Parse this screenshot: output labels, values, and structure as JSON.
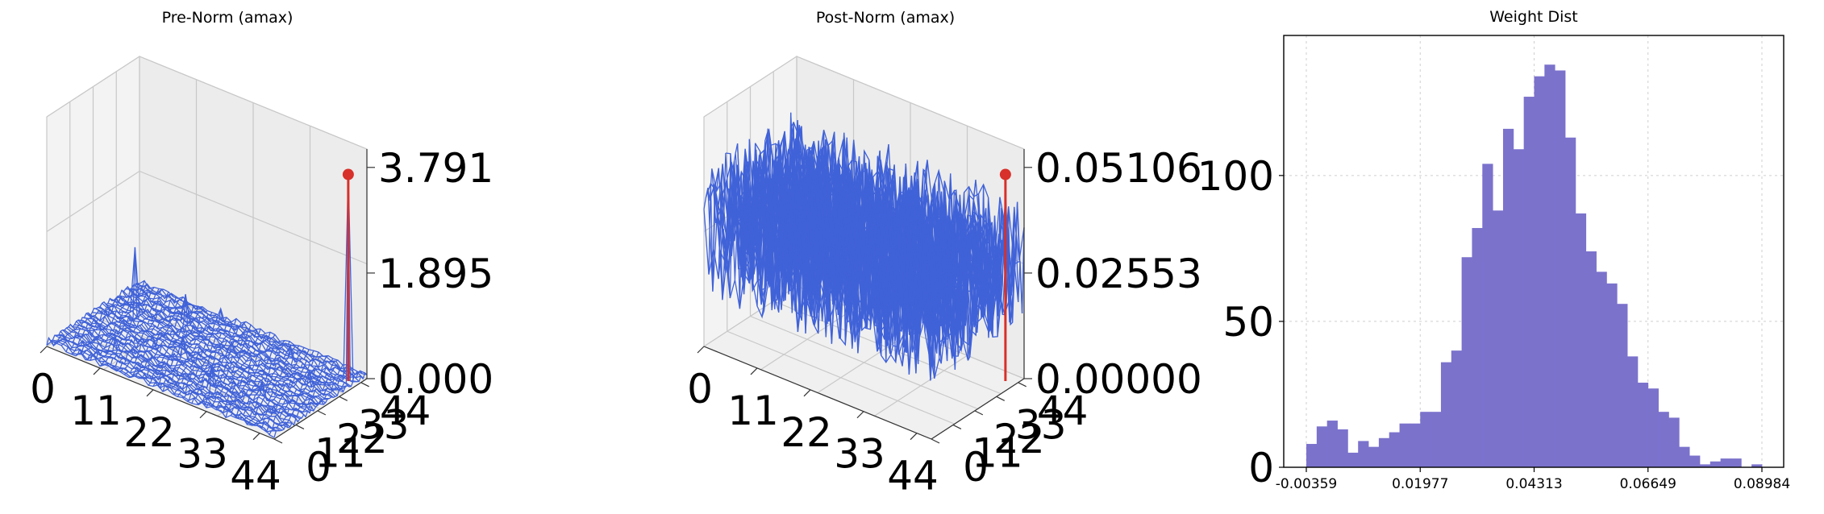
{
  "colors": {
    "wire": "#4062d8",
    "peak": "#d8302a",
    "bar": "#7b72cc",
    "pane": "#f0f0f0",
    "grid": "#c8c8c8"
  },
  "chart_data": [
    {
      "type": "surface3d",
      "title": "Pre-Norm (amax)",
      "x_ticks": [
        "0",
        "11",
        "22",
        "33",
        "44"
      ],
      "y_ticks": [
        "0",
        "11",
        "22",
        "33",
        "44"
      ],
      "z_ticks": [
        "0.000",
        "1.895",
        "3.791"
      ],
      "grid_size": 48,
      "z_range": [
        0,
        3.791
      ],
      "baseline": 0.08,
      "noise": 0.06,
      "spikes": [
        {
          "x": 46,
          "y": 40,
          "z": 3.791
        },
        {
          "x": 6,
          "y": 30,
          "z": 1.3
        },
        {
          "x": 14,
          "y": 36,
          "z": 0.6
        },
        {
          "x": 20,
          "y": 20,
          "z": 0.45
        },
        {
          "x": 30,
          "y": 10,
          "z": 0.5
        },
        {
          "x": 38,
          "y": 16,
          "z": 0.35
        },
        {
          "x": 10,
          "y": 10,
          "z": 0.3
        },
        {
          "x": 26,
          "y": 30,
          "z": 0.3
        },
        {
          "x": 42,
          "y": 30,
          "z": 0.35
        },
        {
          "x": 18,
          "y": 44,
          "z": 0.3
        },
        {
          "x": 34,
          "y": 40,
          "z": 0.3
        }
      ],
      "peak": {
        "x": 46,
        "y": 40,
        "z": 3.791
      }
    },
    {
      "type": "surface3d",
      "title": "Post-Norm (amax)",
      "x_ticks": [
        "0",
        "11",
        "22",
        "33",
        "44"
      ],
      "y_ticks": [
        "0",
        "11",
        "22",
        "33",
        "44"
      ],
      "z_ticks": [
        "0.00000",
        "0.02553",
        "0.05106"
      ],
      "grid_size": 48,
      "z_range": [
        0,
        0.05106
      ],
      "baseline": 0.028,
      "noise": 0.016,
      "spikes": [],
      "peak": {
        "x": 46,
        "y": 40,
        "z": 0.05106
      }
    },
    {
      "type": "histogram",
      "title": "Weight Dist",
      "x_range": [
        -0.00359,
        0.08984
      ],
      "x_ticks": [
        "-0.00359",
        "0.01977",
        "0.04313",
        "0.06649",
        "0.08984"
      ],
      "y_ticks": [
        "0",
        "50",
        "100"
      ],
      "ylim": [
        0,
        148
      ],
      "grid": true,
      "counts": [
        8,
        14,
        16,
        13,
        5,
        9,
        7,
        10,
        12,
        15,
        15,
        19,
        19,
        36,
        40,
        72,
        82,
        104,
        88,
        116,
        109,
        127,
        134,
        138,
        136,
        113,
        87,
        74,
        67,
        63,
        56,
        38,
        29,
        27,
        19,
        17,
        7,
        4,
        1,
        2,
        3,
        3,
        0,
        1
      ]
    }
  ]
}
